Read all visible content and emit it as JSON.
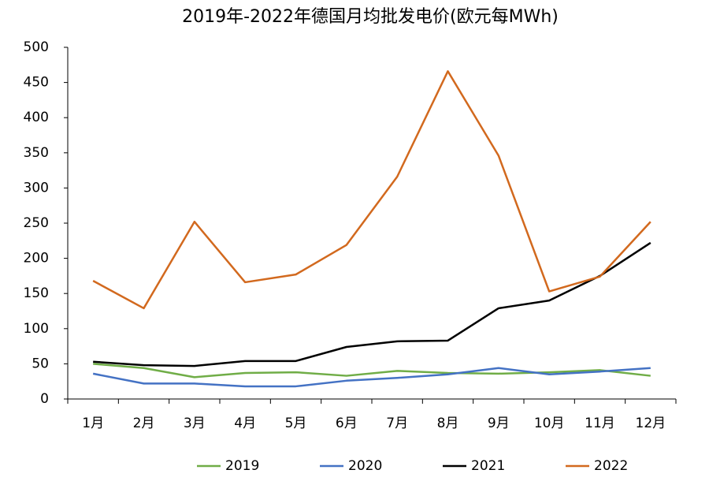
{
  "chart_data": {
    "type": "line",
    "title": "2019年-2022年德国月均批发电价(欧元每MWh)",
    "categories": [
      "1月",
      "2月",
      "3月",
      "4月",
      "5月",
      "6月",
      "7月",
      "8月",
      "9月",
      "10月",
      "11月",
      "12月"
    ],
    "series": [
      {
        "name": "2019",
        "color": "#70ad47",
        "values": [
          50,
          44,
          31,
          37,
          38,
          33,
          40,
          37,
          36,
          38,
          41,
          33
        ]
      },
      {
        "name": "2020",
        "color": "#4472c4",
        "values": [
          36,
          22,
          22,
          18,
          18,
          26,
          30,
          35,
          44,
          35,
          39,
          44
        ]
      },
      {
        "name": "2021",
        "color": "#000000",
        "values": [
          53,
          48,
          47,
          54,
          54,
          74,
          82,
          83,
          129,
          140,
          175,
          222
        ]
      },
      {
        "name": "2022",
        "color": "#d2691e",
        "values": [
          168,
          129,
          252,
          166,
          177,
          219,
          316,
          466,
          346,
          153,
          174,
          252
        ]
      }
    ],
    "ylim": [
      0,
      500
    ],
    "yticks": [
      0,
      50,
      100,
      150,
      200,
      250,
      300,
      350,
      400,
      450,
      500
    ],
    "grid": false,
    "legend": "bottom"
  }
}
